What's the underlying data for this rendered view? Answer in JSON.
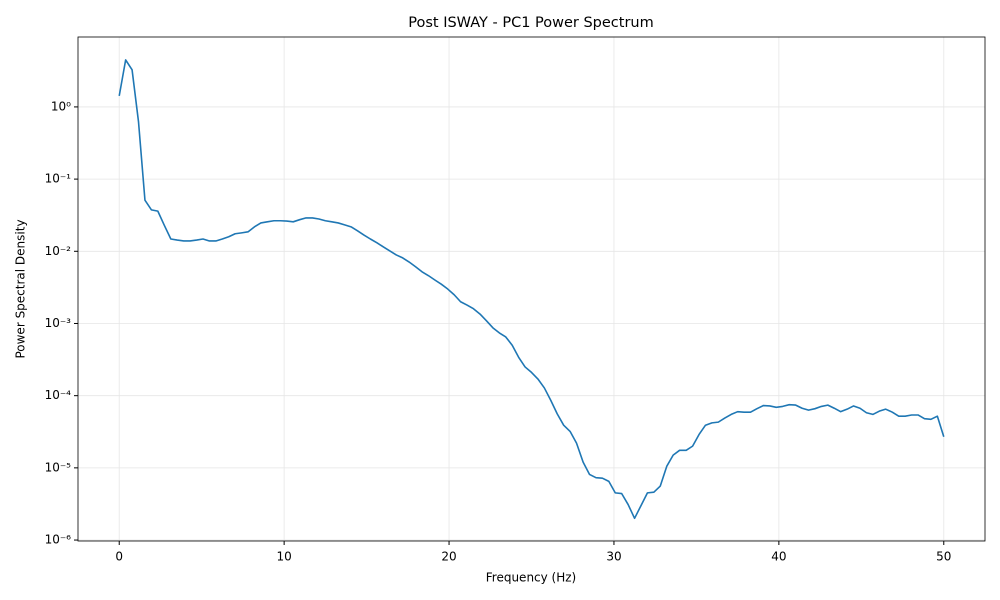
{
  "chart_data": {
    "type": "line",
    "title": "Post ISWAY - PC1 Power Spectrum",
    "xlabel": "Frequency (Hz)",
    "ylabel": "Power Spectral Density",
    "color": "#1f77b4",
    "yscale": "log",
    "grid": true,
    "xlim": [
      -2.5,
      52.5
    ],
    "xticks": [
      0,
      10,
      20,
      30,
      40,
      50
    ],
    "ylim": [
      9.7e-07,
      9.3
    ],
    "yticks": [
      {
        "value": 1e-06,
        "label": "10⁻⁶"
      },
      {
        "value": 1e-05,
        "label": "10⁻⁵"
      },
      {
        "value": 0.0001,
        "label": "10⁻⁴"
      },
      {
        "value": 0.001,
        "label": "10⁻³"
      },
      {
        "value": 0.01,
        "label": "10⁻²"
      },
      {
        "value": 0.1,
        "label": "10⁻¹"
      },
      {
        "value": 1,
        "label": "10⁰"
      }
    ],
    "x": [
      0,
      0.39,
      0.78,
      1.17,
      1.56,
      1.95,
      2.34,
      2.73,
      3.13,
      3.52,
      3.91,
      4.3,
      4.69,
      5.08,
      5.47,
      5.86,
      6.25,
      6.64,
      7.03,
      7.42,
      7.81,
      8.2,
      8.59,
      8.98,
      9.38,
      9.77,
      10.16,
      10.55,
      10.94,
      11.33,
      11.72,
      12.11,
      12.5,
      12.89,
      13.28,
      13.67,
      14.06,
      14.45,
      14.84,
      15.23,
      15.63,
      16.02,
      16.41,
      16.8,
      17.19,
      17.58,
      17.97,
      18.36,
      18.75,
      19.14,
      19.53,
      19.92,
      20.31,
      20.7,
      21.09,
      21.48,
      21.88,
      22.27,
      22.66,
      23.05,
      23.44,
      23.83,
      24.22,
      24.61,
      25.0,
      25.39,
      25.78,
      26.17,
      26.56,
      26.95,
      27.34,
      27.73,
      28.13,
      28.52,
      28.91,
      29.3,
      29.69,
      30.08,
      30.47,
      30.86,
      31.25,
      31.64,
      32.03,
      32.42,
      32.81,
      33.2,
      33.59,
      33.98,
      34.38,
      34.77,
      35.16,
      35.55,
      35.94,
      36.33,
      36.72,
      37.11,
      37.5,
      37.89,
      38.28,
      38.67,
      39.06,
      39.45,
      39.84,
      40.23,
      40.63,
      41.02,
      41.41,
      41.8,
      42.19,
      42.58,
      42.97,
      43.36,
      43.75,
      44.14,
      44.53,
      44.92,
      45.31,
      45.7,
      46.09,
      46.48,
      46.88,
      47.27,
      47.66,
      48.05,
      48.44,
      48.83,
      49.22,
      49.61,
      50.0
    ],
    "values": [
      1.42,
      4.48,
      3.26,
      0.62,
      0.051,
      0.0375,
      0.036,
      0.023,
      0.0148,
      0.0143,
      0.0139,
      0.0139,
      0.0143,
      0.0148,
      0.0139,
      0.0139,
      0.0148,
      0.0159,
      0.0175,
      0.018,
      0.0186,
      0.0218,
      0.0247,
      0.0256,
      0.0265,
      0.0265,
      0.0262,
      0.0256,
      0.0274,
      0.029,
      0.029,
      0.028,
      0.0265,
      0.0256,
      0.0247,
      0.0232,
      0.0218,
      0.0192,
      0.0168,
      0.0148,
      0.0131,
      0.0115,
      0.0101,
      0.0089,
      0.0081,
      0.0071,
      0.0061,
      0.0052,
      0.0046,
      0.004,
      0.0035,
      0.003,
      0.0025,
      0.002,
      0.0018,
      0.0016,
      0.00135,
      0.00109,
      0.00087,
      0.00074,
      0.00065,
      0.0005,
      0.00034,
      0.00025,
      0.00021,
      0.00017,
      0.000128,
      8.6e-05,
      5.6e-05,
      3.9e-05,
      3.2e-05,
      2.2e-05,
      1.2e-05,
      8.1e-06,
      7.3e-06,
      7.2e-06,
      6.5e-06,
      4.5e-06,
      4.4e-06,
      3.1e-06,
      2e-06,
      3e-06,
      4.5e-06,
      4.6e-06,
      5.6e-06,
      1.05e-05,
      1.5e-05,
      1.75e-05,
      1.75e-05,
      2e-05,
      2.9e-05,
      3.9e-05,
      4.2e-05,
      4.3e-05,
      4.9e-05,
      5.5e-05,
      6e-05,
      5.9e-05,
      5.9e-05,
      6.6e-05,
      7.3e-05,
      7.2e-05,
      6.9e-05,
      7.1e-05,
      7.5e-05,
      7.4e-05,
      6.7e-05,
      6.3e-05,
      6.6e-05,
      7.1e-05,
      7.4e-05,
      6.7e-05,
      6e-05,
      6.5e-05,
      7.2e-05,
      6.7e-05,
      5.8e-05,
      5.5e-05,
      6.1e-05,
      6.5e-05,
      5.9e-05,
      5.2e-05,
      5.2e-05,
      5.4e-05,
      5.4e-05,
      4.8e-05,
      4.7e-05,
      5.2e-05,
      2.7e-05
    ]
  }
}
